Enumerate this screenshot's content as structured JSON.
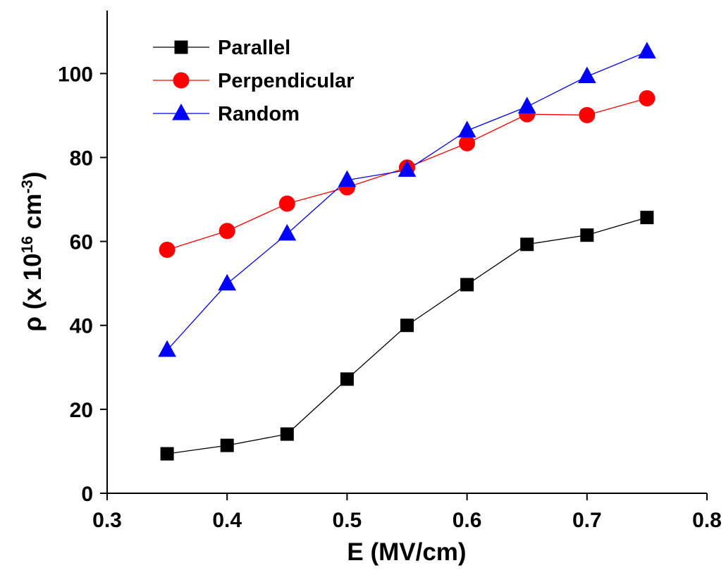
{
  "chart_data": {
    "type": "line",
    "x_label": "E (MV/cm)",
    "y_label": [
      "ρ (x 10",
      "16",
      " cm",
      "-3",
      ")"
    ],
    "x": [
      0.35,
      0.4,
      0.45,
      0.5,
      0.55,
      0.6,
      0.65,
      0.7,
      0.75
    ],
    "series": [
      {
        "name": "Parallel",
        "color": "#000000",
        "marker": "square",
        "values": [
          9.4,
          11.4,
          14.1,
          27.2,
          40,
          49.7,
          59.3,
          61.5,
          65.7
        ]
      },
      {
        "name": "Perpendicular",
        "color": "#ff0000",
        "marker": "circle",
        "values": [
          58,
          62.5,
          69,
          72.9,
          77.6,
          83.4,
          90.3,
          90.1,
          94.1
        ]
      },
      {
        "name": "Random",
        "color": "#0000ff",
        "marker": "triangle",
        "values": [
          34.1,
          49.9,
          61.8,
          74.6,
          77,
          86.4,
          92.1,
          99.3,
          105.2
        ]
      }
    ],
    "xlim": [
      0.3,
      0.8
    ],
    "xticks": [
      0.3,
      0.4,
      0.5,
      0.6,
      0.7,
      0.8
    ],
    "ylim": [
      0,
      115
    ],
    "yticks": [
      0,
      20,
      40,
      60,
      80,
      100
    ],
    "legend": "top-left",
    "grid": false
  }
}
